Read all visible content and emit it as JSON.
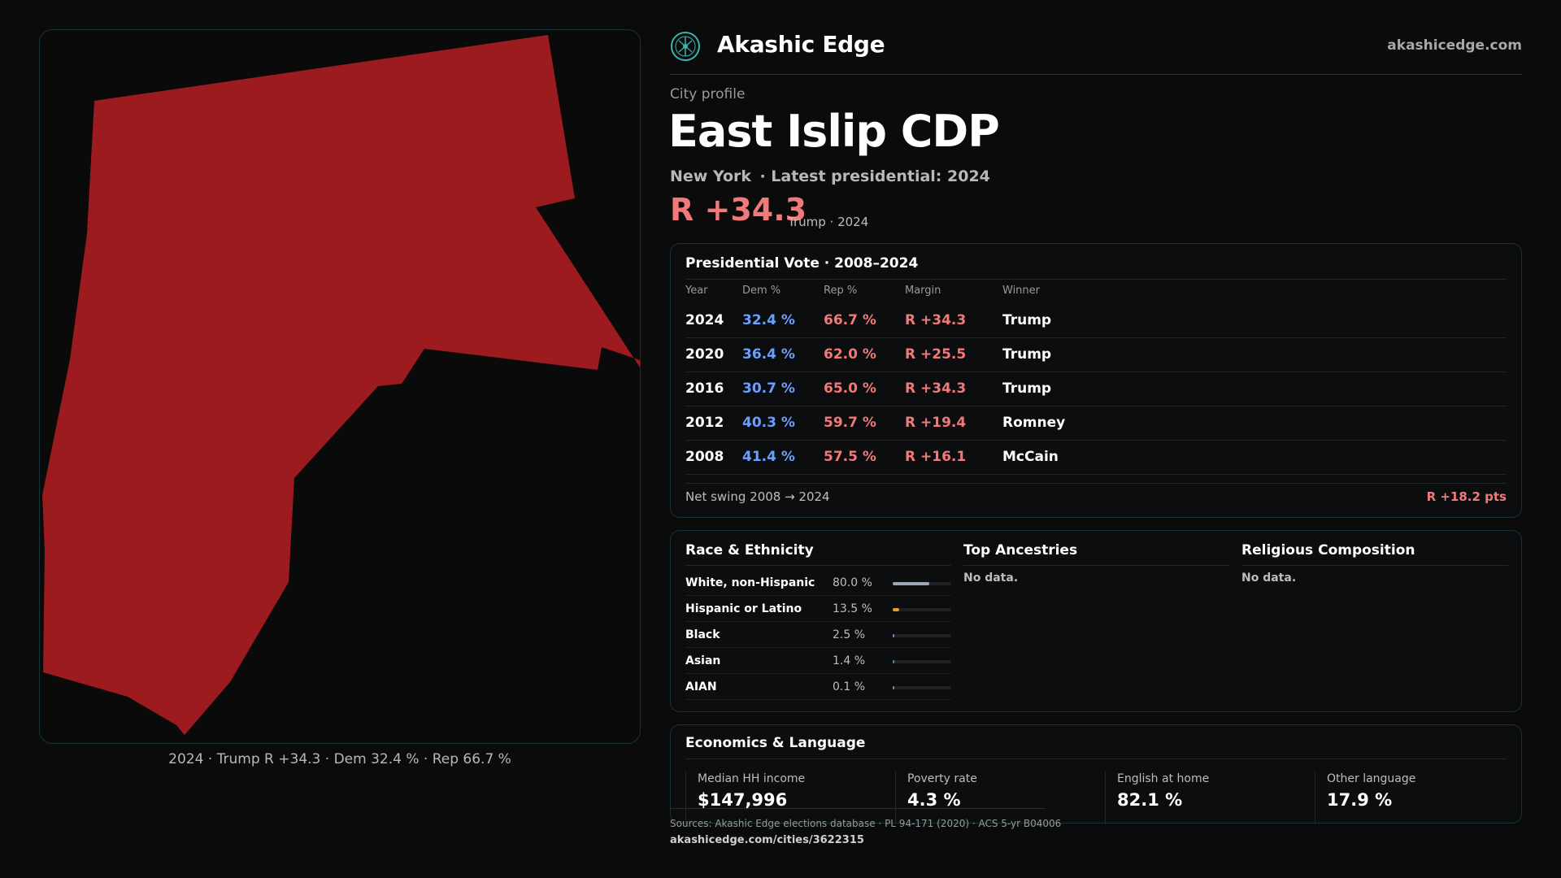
{
  "header": {
    "brand": "Akashic Edge",
    "domain": "akashicedge.com",
    "logo_icon": "tree-of-life-icon"
  },
  "profile": {
    "label": "City profile",
    "title": "East Islip CDP",
    "subtitle": "New York  · Latest presidential: 2024",
    "margin": "R +34.3",
    "margin_note": "Trump · 2024"
  },
  "map": {
    "caption": "2024 · Trump  R +34.3 · Dem 32.4 % · Rep 66.7 %",
    "fill_color": "#9b1b1e"
  },
  "vote_table": {
    "title": "Presidential Vote · 2008–2024",
    "headers": [
      "Year",
      "Dem %",
      "Rep %",
      "Margin",
      "Winner"
    ],
    "rows": [
      {
        "year": "2024",
        "dem": "32.4 %",
        "rep": "66.7 %",
        "margin": "R +34.3",
        "winner": "Trump"
      },
      {
        "year": "2020",
        "dem": "36.4 %",
        "rep": "62.0 %",
        "margin": "R +25.5",
        "winner": "Trump"
      },
      {
        "year": "2016",
        "dem": "30.7 %",
        "rep": "65.0 %",
        "margin": "R +34.3",
        "winner": "Trump"
      },
      {
        "year": "2012",
        "dem": "40.3 %",
        "rep": "59.7 %",
        "margin": "R +19.4",
        "winner": "Romney"
      },
      {
        "year": "2008",
        "dem": "41.4 %",
        "rep": "57.5 %",
        "margin": "R +16.1",
        "winner": "McCain"
      }
    ],
    "swing_label": "Net swing 2008 → 2024",
    "swing_value": "R +18.2 pts"
  },
  "race": {
    "title": "Race & Ethnicity",
    "rows": [
      {
        "label": "White, non-Hispanic",
        "pct": "80.0 %",
        "value": 80.0,
        "color": "#9aa7b8"
      },
      {
        "label": "Hispanic or Latino",
        "pct": "13.5 %",
        "value": 13.5,
        "color": "#e0a030"
      },
      {
        "label": "Black",
        "pct": "2.5 %",
        "value": 2.5,
        "color": "#8a7ad8"
      },
      {
        "label": "Asian",
        "pct": "1.4 %",
        "value": 1.4,
        "color": "#3aa090"
      },
      {
        "label": "AIAN",
        "pct": "0.1 %",
        "value": 0.1,
        "color": "#8a8a8a"
      }
    ]
  },
  "ancestries": {
    "title": "Top Ancestries",
    "empty": "No data."
  },
  "religion": {
    "title": "Religious Composition",
    "empty": "No data."
  },
  "economics": {
    "title": "Economics & Language",
    "stats": [
      {
        "label": "Median HH income",
        "value": "$147,996"
      },
      {
        "label": "Poverty rate",
        "value": "4.3 %"
      },
      {
        "label": "English at home",
        "value": "82.1 %"
      },
      {
        "label": "Other language",
        "value": "17.9 %"
      }
    ]
  },
  "footer": {
    "sources": "Sources: Akashic Edge elections database · PL 94-171 (2020) · ACS 5-yr B04006",
    "url": "akashicedge.com/cities/3622315"
  }
}
